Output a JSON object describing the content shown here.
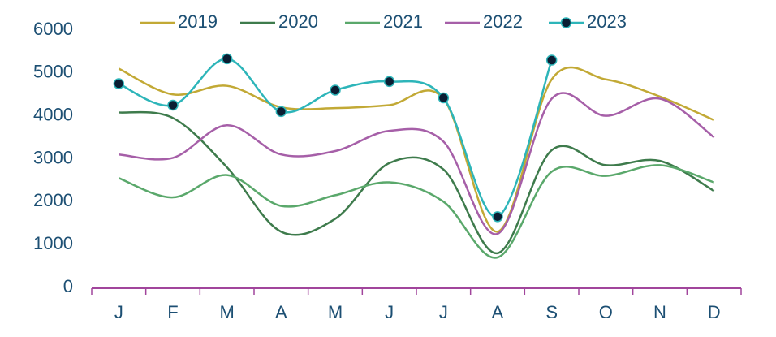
{
  "chart_data": {
    "type": "line",
    "categories": [
      "J",
      "F",
      "M",
      "A",
      "M",
      "J",
      "J",
      "A",
      "S",
      "O",
      "N",
      "D"
    ],
    "series": [
      {
        "name": "2019",
        "color": "#c2a935",
        "values": [
          5100,
          4500,
          4700,
          4200,
          4180,
          4250,
          4400,
          1300,
          4850,
          4850,
          4450,
          3900
        ]
      },
      {
        "name": "2020",
        "color": "#3e7b4c",
        "values": [
          4080,
          3950,
          2800,
          1300,
          1600,
          2900,
          2750,
          800,
          3200,
          2850,
          2950,
          2250
        ]
      },
      {
        "name": "2021",
        "color": "#5aa86b",
        "values": [
          2550,
          2100,
          2620,
          1900,
          2150,
          2450,
          2000,
          700,
          2700,
          2600,
          2850,
          2450
        ]
      },
      {
        "name": "2022",
        "color": "#a65fa8",
        "values": [
          3100,
          3020,
          3780,
          3100,
          3180,
          3650,
          3400,
          1250,
          4400,
          4000,
          4400,
          3500
        ]
      },
      {
        "name": "2023",
        "color": "#2db5b9",
        "markers": true,
        "values": [
          4750,
          4250,
          5330,
          4100,
          4600,
          4800,
          4420,
          1650,
          5300,
          null,
          null,
          null
        ]
      }
    ],
    "ylim": [
      0,
      6000
    ],
    "yticks": [
      0,
      1000,
      2000,
      3000,
      4000,
      5000,
      6000
    ],
    "smooth": true
  }
}
